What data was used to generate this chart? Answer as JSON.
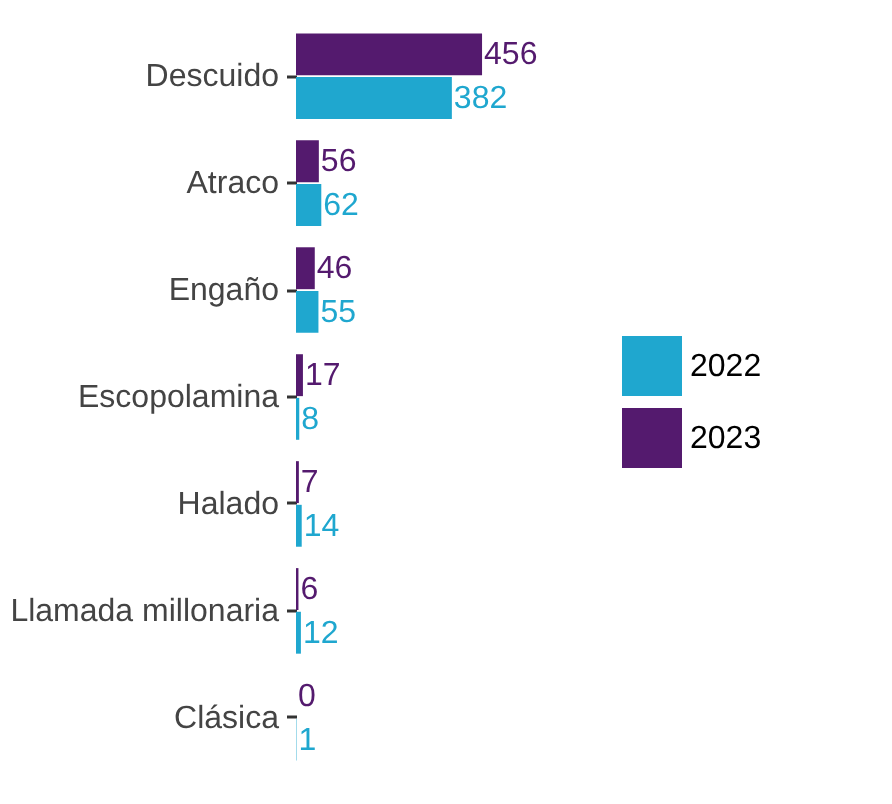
{
  "chart_data": {
    "type": "bar",
    "orientation": "horizontal",
    "categories": [
      "Descuido",
      "Atraco",
      "Engaño",
      "Escopolamina",
      "Halado",
      "Llamada millonaria",
      "Clásica"
    ],
    "series": [
      {
        "name": "2022",
        "color": "#1fa7cf",
        "values": [
          382,
          62,
          55,
          8,
          14,
          12,
          1
        ]
      },
      {
        "name": "2023",
        "color": "#541a6e",
        "values": [
          456,
          56,
          46,
          17,
          7,
          6,
          0
        ]
      }
    ],
    "data_labels": true,
    "tick_labels": "y",
    "legend": "right"
  }
}
